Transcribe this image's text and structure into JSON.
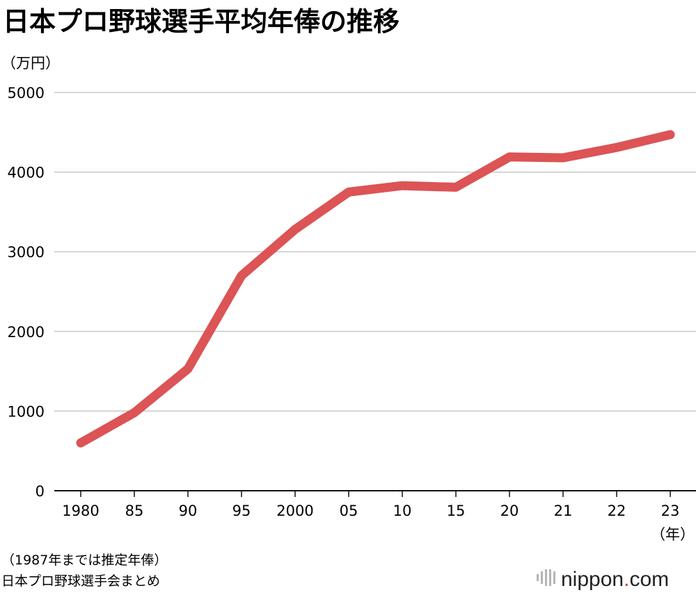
{
  "chart_data": {
    "type": "line",
    "title": "日本プロ野球選手平均年俸の推移",
    "ylabel": "（万円）",
    "xlabel": "（年）",
    "categories": [
      "1980",
      "85",
      "90",
      "95",
      "2000",
      "05",
      "10",
      "15",
      "20",
      "21",
      "22",
      "23"
    ],
    "series": [
      {
        "values": [
          600,
          980,
          1530,
          2700,
          3280,
          3750,
          3830,
          3810,
          4190,
          4180,
          4310,
          4470
        ]
      }
    ],
    "ylim": [
      0,
      5000
    ],
    "yticks": [
      "0",
      "1000",
      "2000",
      "3000",
      "4000",
      "5000"
    ],
    "grid": true,
    "line_color": "#dc5455"
  },
  "notes": {
    "line1": "（1987年までは推定年俸）",
    "line2": "日本プロ野球選手会まとめ"
  },
  "logo": {
    "text_main": "nippon",
    "text_dot": ".",
    "text_tld": "com"
  }
}
